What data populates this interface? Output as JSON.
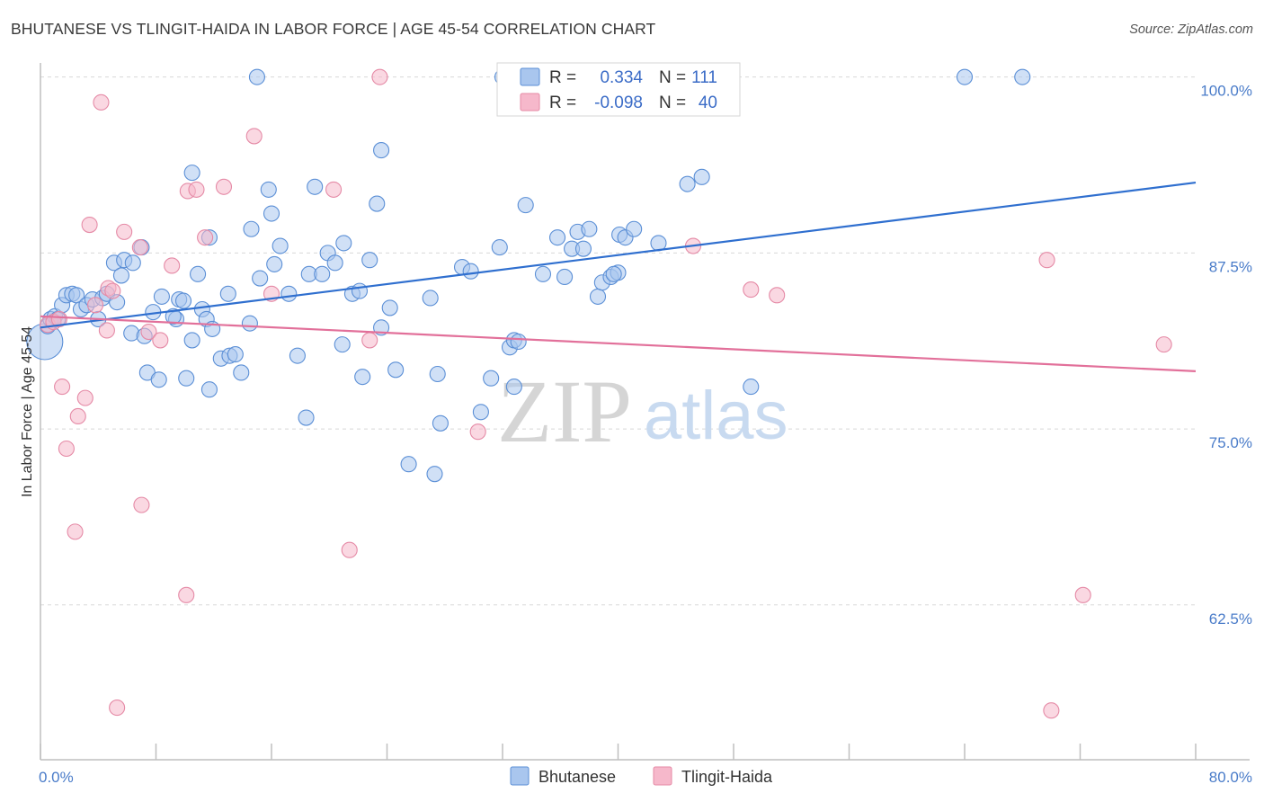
{
  "title": "BHUTANESE VS TLINGIT-HAIDA IN LABOR FORCE | AGE 45-54 CORRELATION CHART",
  "source": "Source: ZipAtlas.com",
  "watermark": {
    "zip": "ZIP",
    "atlas": "atlas"
  },
  "colors": {
    "blue_fill": "#a9c6ee",
    "blue_stroke": "#5b8fd6",
    "blue_line": "#2f6fcf",
    "pink_fill": "#f6b8cb",
    "pink_stroke": "#e58aa6",
    "pink_line": "#e2709a",
    "grid": "#d8d8d8",
    "axis": "#bfbfbf"
  },
  "legend": {
    "rows": [
      {
        "r_label": "R =",
        "r_value": "0.334",
        "n_label": "N =",
        "n_value": "111",
        "series": "blue"
      },
      {
        "r_label": "R =",
        "r_value": "-0.098",
        "n_label": "N =",
        "n_value": "40",
        "series": "pink"
      }
    ]
  },
  "bottom_legend": [
    "Bhutanese",
    "Tlingit-Haida"
  ],
  "chart_data": {
    "type": "scatter",
    "title": "BHUTANESE VS TLINGIT-HAIDA IN LABOR FORCE | AGE 45-54 CORRELATION CHART",
    "xlabel": "",
    "ylabel": "In Labor Force | Age 45-54",
    "xlim": [
      0,
      80
    ],
    "ylim": [
      51.5,
      101
    ],
    "x_tick_labels": [
      "0.0%",
      "80.0%"
    ],
    "y_ticks": [
      62.5,
      75.0,
      87.5,
      100.0
    ],
    "y_tick_labels": [
      "62.5%",
      "75.0%",
      "87.5%",
      "100.0%"
    ],
    "x_minor_ticks": [
      0,
      8,
      16,
      24,
      32,
      40,
      48,
      56,
      64,
      72,
      80
    ],
    "series": [
      {
        "name": "Bhutanese",
        "color": "blue",
        "R": 0.334,
        "N": 111,
        "trend": {
          "x": [
            0,
            80
          ],
          "y": [
            82.2,
            92.5
          ]
        },
        "points": [
          [
            0.3,
            81.2
          ],
          [
            0.5,
            82.3
          ],
          [
            0.7,
            82.8
          ],
          [
            1.0,
            83.0
          ],
          [
            1.2,
            82.8
          ],
          [
            1.5,
            83.8
          ],
          [
            1.8,
            84.5
          ],
          [
            2.2,
            84.6
          ],
          [
            2.5,
            84.5
          ],
          [
            2.8,
            83.5
          ],
          [
            3.2,
            83.8
          ],
          [
            3.6,
            84.2
          ],
          [
            4.0,
            82.8
          ],
          [
            4.3,
            84.3
          ],
          [
            4.6,
            84.6
          ],
          [
            5.3,
            84.0
          ],
          [
            5.1,
            86.8
          ],
          [
            5.6,
            85.9
          ],
          [
            5.8,
            87.0
          ],
          [
            6.4,
            86.8
          ],
          [
            7.0,
            87.9
          ],
          [
            6.3,
            81.8
          ],
          [
            7.2,
            81.6
          ],
          [
            7.8,
            83.3
          ],
          [
            7.4,
            79.0
          ],
          [
            8.2,
            78.5
          ],
          [
            8.4,
            84.4
          ],
          [
            9.4,
            82.8
          ],
          [
            9.2,
            83.0
          ],
          [
            9.6,
            84.2
          ],
          [
            9.9,
            84.1
          ],
          [
            10.5,
            81.3
          ],
          [
            10.1,
            78.6
          ],
          [
            10.9,
            86.0
          ],
          [
            11.2,
            83.5
          ],
          [
            11.5,
            82.8
          ],
          [
            11.9,
            82.1
          ],
          [
            11.7,
            77.8
          ],
          [
            10.5,
            93.2
          ],
          [
            11.7,
            88.6
          ],
          [
            12.5,
            80.0
          ],
          [
            13.1,
            80.2
          ],
          [
            13.5,
            80.3
          ],
          [
            13.9,
            79.0
          ],
          [
            13.0,
            84.6
          ],
          [
            14.5,
            82.5
          ],
          [
            15.2,
            85.7
          ],
          [
            14.6,
            89.2
          ],
          [
            15.0,
            100.0
          ],
          [
            15.8,
            92.0
          ],
          [
            16.0,
            90.3
          ],
          [
            16.2,
            86.7
          ],
          [
            16.6,
            88.0
          ],
          [
            17.2,
            84.6
          ],
          [
            17.8,
            80.2
          ],
          [
            18.4,
            75.8
          ],
          [
            18.6,
            86.0
          ],
          [
            19.0,
            92.2
          ],
          [
            19.5,
            86.0
          ],
          [
            19.9,
            87.5
          ],
          [
            20.4,
            86.8
          ],
          [
            20.9,
            81.0
          ],
          [
            21.0,
            88.2
          ],
          [
            21.6,
            84.6
          ],
          [
            22.1,
            84.8
          ],
          [
            22.3,
            78.7
          ],
          [
            22.8,
            87.0
          ],
          [
            23.6,
            82.2
          ],
          [
            24.2,
            83.6
          ],
          [
            24.6,
            79.2
          ],
          [
            23.3,
            91.0
          ],
          [
            23.6,
            94.8
          ],
          [
            25.5,
            72.5
          ],
          [
            27.0,
            84.3
          ],
          [
            27.3,
            71.8
          ],
          [
            27.5,
            78.9
          ],
          [
            27.7,
            75.4
          ],
          [
            29.2,
            86.5
          ],
          [
            29.8,
            86.2
          ],
          [
            30.5,
            76.2
          ],
          [
            31.2,
            78.6
          ],
          [
            31.8,
            87.9
          ],
          [
            32.0,
            100.0
          ],
          [
            32.5,
            80.8
          ],
          [
            32.8,
            81.3
          ],
          [
            33.1,
            81.2
          ],
          [
            32.8,
            78.0
          ],
          [
            33.6,
            90.9
          ],
          [
            34.8,
            86.0
          ],
          [
            35.8,
            88.6
          ],
          [
            36.3,
            85.8
          ],
          [
            36.8,
            87.8
          ],
          [
            37.2,
            89.0
          ],
          [
            37.6,
            87.8
          ],
          [
            38.0,
            89.2
          ],
          [
            38.6,
            84.4
          ],
          [
            38.9,
            85.4
          ],
          [
            39.5,
            85.8
          ],
          [
            40.0,
            86.1
          ],
          [
            39.7,
            86.0
          ],
          [
            40.1,
            88.8
          ],
          [
            40.5,
            88.6
          ],
          [
            41.1,
            89.2
          ],
          [
            42.8,
            88.2
          ],
          [
            44.8,
            92.4
          ],
          [
            45.8,
            92.9
          ],
          [
            49.2,
            78.0
          ],
          [
            64.0,
            100.0
          ],
          [
            68.0,
            100.0
          ]
        ]
      },
      {
        "name": "Tlingit-Haida",
        "color": "pink",
        "R": -0.098,
        "N": 40,
        "trend": {
          "x": [
            0,
            80
          ],
          "y": [
            83.0,
            79.1
          ]
        },
        "points": [
          [
            0.5,
            82.4
          ],
          [
            0.9,
            82.6
          ],
          [
            1.3,
            82.8
          ],
          [
            1.5,
            78.0
          ],
          [
            1.8,
            73.6
          ],
          [
            2.4,
            67.7
          ],
          [
            2.6,
            75.9
          ],
          [
            3.1,
            77.2
          ],
          [
            3.4,
            89.5
          ],
          [
            3.8,
            83.8
          ],
          [
            4.2,
            98.2
          ],
          [
            4.6,
            82.0
          ],
          [
            4.7,
            85.0
          ],
          [
            5.0,
            84.8
          ],
          [
            5.3,
            55.2
          ],
          [
            5.8,
            89.0
          ],
          [
            6.9,
            87.9
          ],
          [
            7.0,
            69.6
          ],
          [
            7.5,
            81.9
          ],
          [
            8.3,
            81.3
          ],
          [
            9.1,
            86.6
          ],
          [
            10.2,
            91.9
          ],
          [
            10.8,
            92.0
          ],
          [
            11.4,
            88.6
          ],
          [
            10.1,
            63.2
          ],
          [
            12.7,
            92.2
          ],
          [
            14.8,
            95.8
          ],
          [
            16.0,
            84.6
          ],
          [
            20.3,
            92.0
          ],
          [
            21.4,
            66.4
          ],
          [
            22.8,
            81.3
          ],
          [
            23.5,
            100.0
          ],
          [
            30.3,
            74.8
          ],
          [
            45.2,
            88.0
          ],
          [
            49.2,
            84.9
          ],
          [
            51.0,
            84.5
          ],
          [
            69.7,
            87.0
          ],
          [
            72.2,
            63.2
          ],
          [
            77.8,
            81.0
          ],
          [
            70.0,
            55.0
          ]
        ]
      }
    ]
  }
}
